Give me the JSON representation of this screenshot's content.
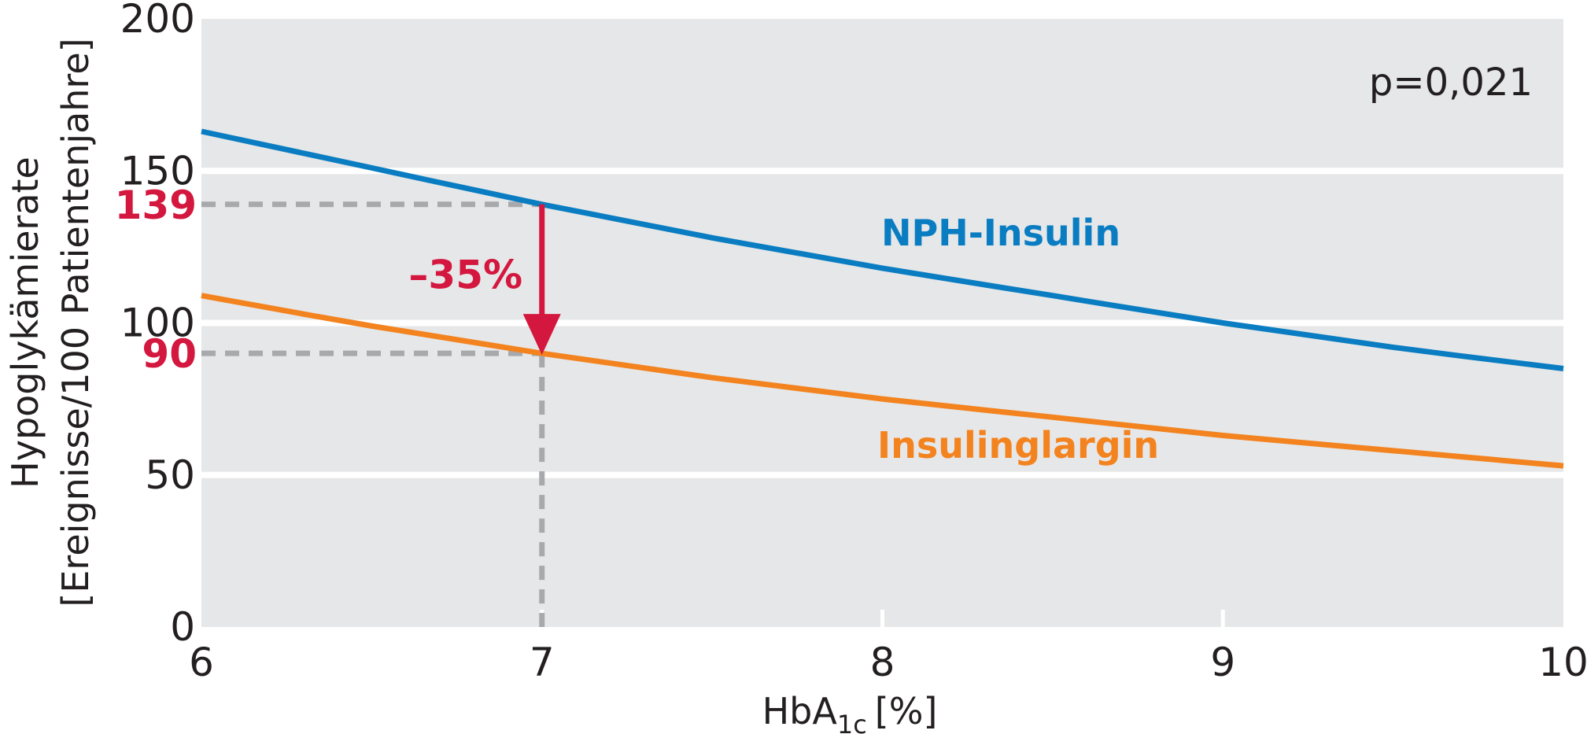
{
  "chart_data": {
    "type": "line",
    "xlabel": "HbA",
    "xlabel_subscript": "1c",
    "xlabel_unit": "[%]",
    "ylabel_line1": "Hypoglykämierate",
    "ylabel_line2": "[Ereignisse/100 Patientenjahre]",
    "xlim": [
      6,
      10
    ],
    "ylim": [
      0,
      200
    ],
    "x_ticks": [
      "6",
      "7",
      "8",
      "9",
      "10"
    ],
    "y_ticks": [
      "0",
      "50",
      "100",
      "150",
      "200"
    ],
    "grid": "horizontal",
    "colors": {
      "background": "#e6e7e8",
      "grid": "#ffffff",
      "npH": "#0a7dc2",
      "glargin": "#f3831f",
      "highlight": "#d4173f",
      "guide": "#a7a9ac"
    },
    "series": [
      {
        "name": "NPH-Insulin",
        "x": [
          6,
          6.5,
          7,
          7.5,
          8,
          8.5,
          9,
          9.5,
          10
        ],
        "y": [
          163,
          151,
          139,
          128,
          118,
          109,
          100,
          92,
          85
        ]
      },
      {
        "name": "Insulinglargin",
        "x": [
          6,
          6.5,
          7,
          7.5,
          8,
          8.5,
          9,
          9.5,
          10
        ],
        "y": [
          109,
          99,
          90,
          82,
          75,
          69,
          63,
          58,
          53
        ]
      }
    ],
    "highlight": {
      "x": 7,
      "y_top": 139,
      "y_bottom": 90,
      "label_top": "139",
      "label_bottom": "90",
      "change_label": "–35%"
    },
    "annotation": "p=0,021"
  }
}
